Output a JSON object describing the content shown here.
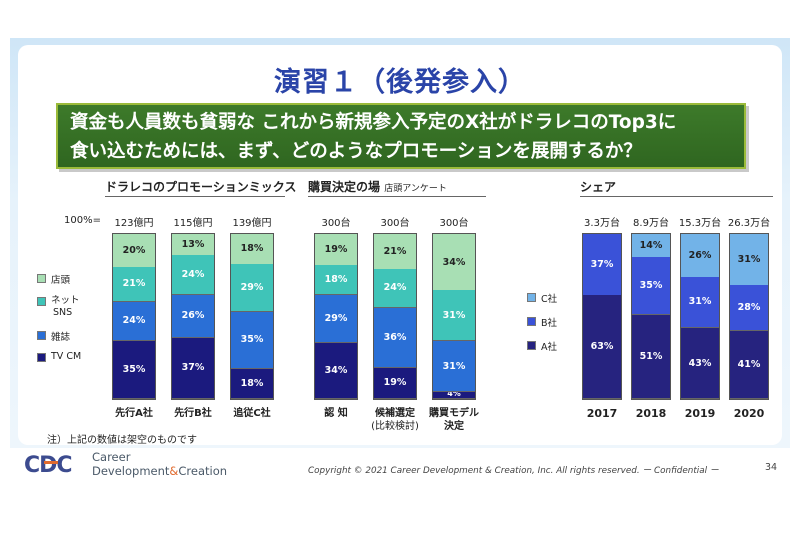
{
  "title": "演習１（後発参入）",
  "question": {
    "line1": "資金も人員数も貧弱な これから新規参入予定のX社がドラレコのTop3に",
    "line2": "食い込むためには、まず、どのようなプロモーションを展開するか？"
  },
  "colors": {
    "store": "#a8dfb4",
    "net": "#3fc4b8",
    "magazine": "#2a6fd6",
    "tv": "#1b1a7e",
    "c_share": "#72b3e8",
    "b_share": "#3a52d8",
    "a_share": "#26237f"
  },
  "sections": {
    "promo": "ドラレコのプロモーションミックス",
    "place": "購買決定の場",
    "place_sub": "店頭アンケート",
    "share": "シェア"
  },
  "percent_label": "100%=",
  "legend_promo": {
    "store": "店頭",
    "net": "ネット",
    "net2": "SNS",
    "magazine": "雑誌",
    "tv": "TV CM"
  },
  "legend_share": {
    "c": "C社",
    "b": "B社",
    "a": "A社"
  },
  "chart_data": [
    {
      "type": "bar",
      "title": "ドラレコのプロモーションミックス",
      "stacked": true,
      "categories": [
        "先行A社",
        "先行B社",
        "追従C社"
      ],
      "totals": [
        "123億円",
        "115億円",
        "139億円"
      ],
      "series": [
        {
          "name": "TV CM",
          "values": [
            35,
            37,
            18
          ],
          "labels": [
            "35%",
            "37%",
            "18%"
          ]
        },
        {
          "name": "雑誌",
          "values": [
            24,
            26,
            35
          ],
          "labels": [
            "24%",
            "26%",
            "35%"
          ]
        },
        {
          "name": "ネット SNS",
          "values": [
            21,
            24,
            29
          ],
          "labels": [
            "21%",
            "24%",
            "29%"
          ]
        },
        {
          "name": "店頭",
          "values": [
            20,
            13,
            18
          ],
          "labels": [
            "20%",
            "13%",
            "18%"
          ]
        }
      ],
      "ylim": [
        0,
        100
      ]
    },
    {
      "type": "bar",
      "title": "購買決定の場 店頭アンケート",
      "stacked": true,
      "categories": [
        "認 知",
        "候補選定",
        "購買モデル"
      ],
      "category_sub": [
        "",
        "(比較検討)",
        "決定"
      ],
      "totals": [
        "300台",
        "300台",
        "300台"
      ],
      "series": [
        {
          "name": "TV CM",
          "values": [
            34,
            19,
            4
          ],
          "labels": [
            "34%",
            "19%",
            "4%"
          ]
        },
        {
          "name": "雑誌",
          "values": [
            29,
            36,
            31
          ],
          "labels": [
            "29%",
            "36%",
            "31%"
          ]
        },
        {
          "name": "ネット SNS",
          "values": [
            18,
            24,
            31
          ],
          "labels": [
            "18%",
            "24%",
            "31%"
          ]
        },
        {
          "name": "店頭",
          "values": [
            19,
            21,
            34
          ],
          "labels": [
            "19%",
            "21%",
            "34%"
          ]
        }
      ],
      "ylim": [
        0,
        100
      ]
    },
    {
      "type": "bar",
      "title": "シェア",
      "stacked": true,
      "categories": [
        "2017",
        "2018",
        "2019",
        "2020"
      ],
      "totals": [
        "3.3万台",
        "8.9万台",
        "15.3万台",
        "26.3万台"
      ],
      "series": [
        {
          "name": "A社",
          "values": [
            63,
            51,
            43,
            41
          ],
          "labels": [
            "63%",
            "51%",
            "43%",
            "41%"
          ]
        },
        {
          "name": "B社",
          "values": [
            37,
            35,
            31,
            28
          ],
          "labels": [
            "37%",
            "35%",
            "31%",
            "28%"
          ]
        },
        {
          "name": "C社",
          "values": [
            0,
            14,
            26,
            31
          ],
          "labels": [
            "",
            "14%",
            "26%",
            "31%"
          ]
        }
      ],
      "ylim": [
        0,
        100
      ]
    }
  ],
  "note": "注）上記の数値は架空のものです",
  "footer": {
    "logo": "CDC",
    "logo_line1": "Career",
    "logo_line2a": "Development",
    "logo_amp": "&",
    "logo_line2b": "Creation",
    "copyright": "Copyright © 2021 Career Development & Creation, Inc.  All rights reserved.  ー Confidential ー",
    "page": "34"
  }
}
